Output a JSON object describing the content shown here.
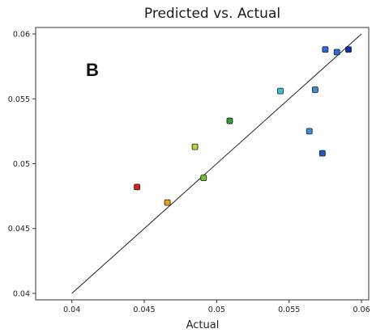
{
  "chart_data": {
    "type": "scatter",
    "title": "Predicted vs. Actual",
    "xlabel": "Actual",
    "ylabel": "",
    "panel_label": "B",
    "xlim": [
      0.0375,
      0.0605
    ],
    "ylim": [
      0.0395,
      0.0605
    ],
    "xticks": [
      {
        "value": 0.04,
        "label": "0.04"
      },
      {
        "value": 0.045,
        "label": "0.045"
      },
      {
        "value": 0.05,
        "label": "0.05"
      },
      {
        "value": 0.055,
        "label": "0.055"
      },
      {
        "value": 0.06,
        "label": "0.06"
      }
    ],
    "yticks": [
      {
        "value": 0.04,
        "label": "0.04"
      },
      {
        "value": 0.045,
        "label": "0.045"
      },
      {
        "value": 0.05,
        "label": "0.05"
      },
      {
        "value": 0.055,
        "label": "0.055"
      },
      {
        "value": 0.06,
        "label": "0.06"
      }
    ],
    "reference_line": {
      "from": [
        0.04,
        0.04
      ],
      "to": [
        0.06,
        0.06
      ]
    },
    "grid": false,
    "points": [
      {
        "x": 0.0445,
        "y": 0.0482,
        "color": "#d42020"
      },
      {
        "x": 0.0466,
        "y": 0.047,
        "color": "#e8a020"
      },
      {
        "x": 0.0485,
        "y": 0.0513,
        "color": "#b8d040"
      },
      {
        "x": 0.0491,
        "y": 0.0489,
        "color": "#70c030"
      },
      {
        "x": 0.0509,
        "y": 0.0533,
        "color": "#30a030"
      },
      {
        "x": 0.0544,
        "y": 0.0556,
        "color": "#30c8d8"
      },
      {
        "x": 0.0564,
        "y": 0.0525,
        "color": "#3a8ee0"
      },
      {
        "x": 0.0568,
        "y": 0.0557,
        "color": "#3a8ee0"
      },
      {
        "x": 0.0573,
        "y": 0.0508,
        "color": "#2058d0"
      },
      {
        "x": 0.0575,
        "y": 0.0588,
        "color": "#2a6ce0"
      },
      {
        "x": 0.0583,
        "y": 0.0586,
        "color": "#2a6ce0"
      },
      {
        "x": 0.0591,
        "y": 0.0588,
        "color": "#1030b0"
      }
    ]
  }
}
